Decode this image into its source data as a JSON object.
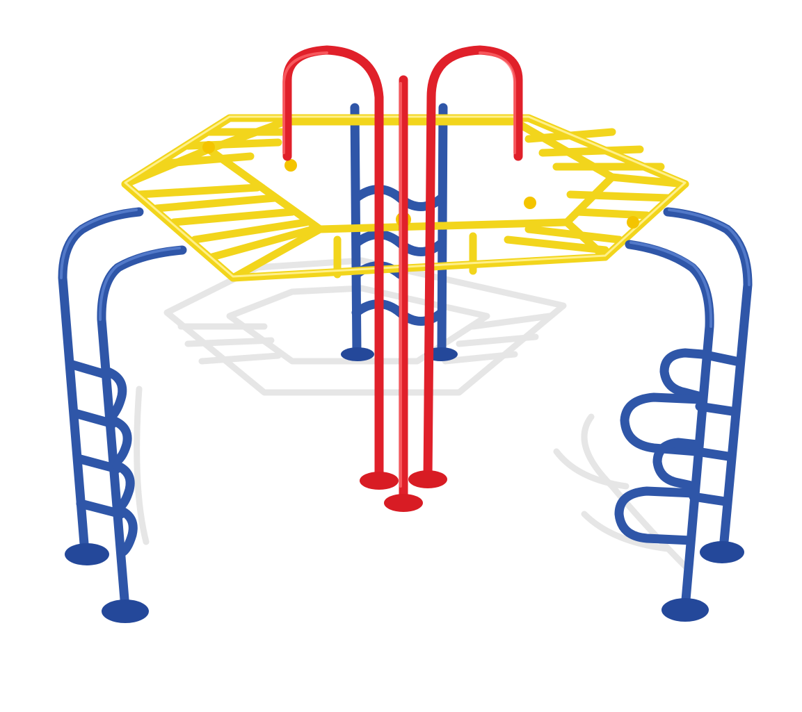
{
  "image": {
    "subject": "playground-climber",
    "colors": {
      "frame": "#2f56a8",
      "arches": "#e0202a",
      "top_deck": "#f2d51c",
      "background": "#ffffff"
    }
  }
}
